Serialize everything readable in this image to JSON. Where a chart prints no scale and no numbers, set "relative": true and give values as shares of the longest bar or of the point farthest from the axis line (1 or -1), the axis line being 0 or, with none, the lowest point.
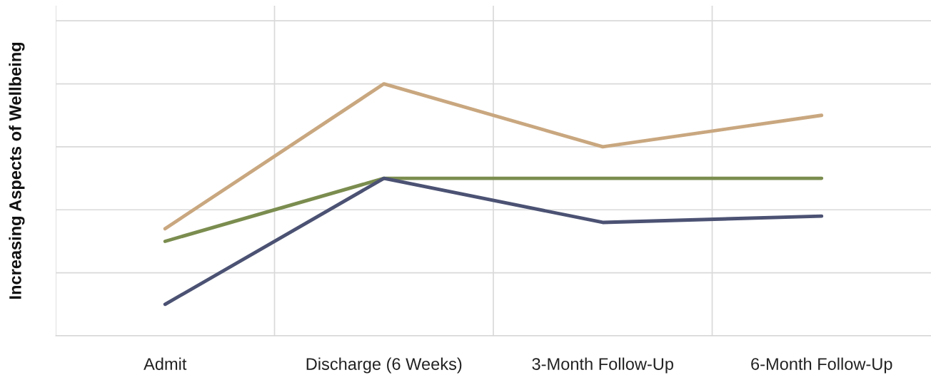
{
  "chart_data": {
    "type": "line",
    "relative": true,
    "ylabel": "Increasing Aspects of Wellbeing",
    "categories": [
      "Admit",
      "Discharge (6 Weeks)",
      "3-Month Follow-Up",
      "6-Month Follow-Up"
    ],
    "series": [
      {
        "color": "#c9a77f",
        "values": [
          0.425,
          1,
          0.75,
          0.875
        ]
      },
      {
        "color": "#7b8d4f",
        "values": [
          0.375,
          0.625,
          0.625,
          0.625
        ]
      },
      {
        "color": "#4b5273",
        "values": [
          0.125,
          0.625,
          0.45,
          0.475
        ]
      }
    ],
    "grid": true,
    "marker": "none",
    "line_style": "solid"
  }
}
